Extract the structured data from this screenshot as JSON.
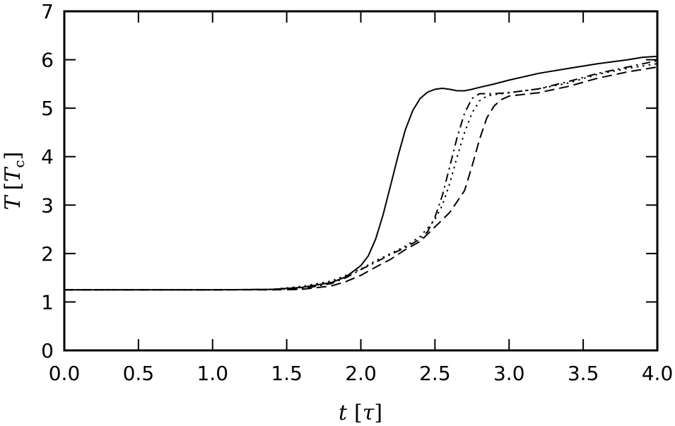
{
  "chart_data": {
    "type": "line",
    "xlabel": "t [τ]",
    "ylabel": "T [T_c]",
    "ylabel_parts": {
      "var": "T",
      "unit_var": "T",
      "unit_sub": "c"
    },
    "xlabel_parts": {
      "var": "t",
      "unit_var": "τ"
    },
    "xlim": [
      0.0,
      4.0
    ],
    "ylim": [
      0,
      7
    ],
    "x_ticks": [
      "0.0",
      "0.5",
      "1.0",
      "1.5",
      "2.0",
      "2.5",
      "3.0",
      "3.5",
      "4.0"
    ],
    "y_ticks": [
      "0",
      "1",
      "2",
      "3",
      "4",
      "5",
      "6",
      "7"
    ],
    "grid": false,
    "series": [
      {
        "style": "solid",
        "color": "#000000",
        "points": [
          [
            0.0,
            1.25
          ],
          [
            1.0,
            1.25
          ],
          [
            1.4,
            1.26
          ],
          [
            1.6,
            1.3
          ],
          [
            1.8,
            1.4
          ],
          [
            1.9,
            1.52
          ],
          [
            2.0,
            1.75
          ],
          [
            2.05,
            1.95
          ],
          [
            2.1,
            2.3
          ],
          [
            2.15,
            2.8
          ],
          [
            2.2,
            3.4
          ],
          [
            2.25,
            4.0
          ],
          [
            2.3,
            4.55
          ],
          [
            2.35,
            4.95
          ],
          [
            2.4,
            5.2
          ],
          [
            2.45,
            5.33
          ],
          [
            2.5,
            5.39
          ],
          [
            2.55,
            5.41
          ],
          [
            2.6,
            5.39
          ],
          [
            2.65,
            5.36
          ],
          [
            2.7,
            5.36
          ],
          [
            2.75,
            5.39
          ],
          [
            2.8,
            5.43
          ],
          [
            2.9,
            5.5
          ],
          [
            3.0,
            5.58
          ],
          [
            3.2,
            5.72
          ],
          [
            3.4,
            5.82
          ],
          [
            3.6,
            5.92
          ],
          [
            3.8,
            6.0
          ],
          [
            3.9,
            6.05
          ],
          [
            4.0,
            6.07
          ]
        ]
      },
      {
        "style": "dashdot",
        "color": "#000000",
        "points": [
          [
            0.0,
            1.25
          ],
          [
            1.0,
            1.25
          ],
          [
            1.4,
            1.26
          ],
          [
            1.6,
            1.27
          ],
          [
            1.8,
            1.38
          ],
          [
            1.9,
            1.5
          ],
          [
            2.0,
            1.67
          ],
          [
            2.1,
            1.82
          ],
          [
            2.2,
            1.98
          ],
          [
            2.3,
            2.12
          ],
          [
            2.4,
            2.3
          ],
          [
            2.45,
            2.45
          ],
          [
            2.5,
            2.75
          ],
          [
            2.55,
            3.2
          ],
          [
            2.6,
            3.8
          ],
          [
            2.65,
            4.4
          ],
          [
            2.7,
            4.9
          ],
          [
            2.75,
            5.2
          ],
          [
            2.8,
            5.3
          ],
          [
            2.9,
            5.3
          ],
          [
            3.0,
            5.32
          ],
          [
            3.2,
            5.4
          ],
          [
            3.4,
            5.55
          ],
          [
            3.6,
            5.72
          ],
          [
            3.8,
            5.85
          ],
          [
            4.0,
            5.98
          ]
        ]
      },
      {
        "style": "dotted",
        "color": "#000000",
        "points": [
          [
            0.0,
            1.25
          ],
          [
            1.0,
            1.25
          ],
          [
            1.4,
            1.26
          ],
          [
            1.6,
            1.32
          ],
          [
            1.8,
            1.43
          ],
          [
            1.9,
            1.55
          ],
          [
            2.0,
            1.68
          ],
          [
            2.1,
            1.85
          ],
          [
            2.2,
            2.0
          ],
          [
            2.3,
            2.15
          ],
          [
            2.4,
            2.35
          ],
          [
            2.5,
            2.7
          ],
          [
            2.55,
            3.0
          ],
          [
            2.6,
            3.45
          ],
          [
            2.65,
            4.0
          ],
          [
            2.7,
            4.5
          ],
          [
            2.75,
            4.9
          ],
          [
            2.8,
            5.15
          ],
          [
            2.85,
            5.25
          ],
          [
            2.9,
            5.28
          ],
          [
            3.0,
            5.32
          ],
          [
            3.2,
            5.4
          ],
          [
            3.4,
            5.52
          ],
          [
            3.6,
            5.7
          ],
          [
            3.8,
            5.82
          ],
          [
            4.0,
            5.92
          ]
        ]
      },
      {
        "style": "dashed",
        "color": "#000000",
        "points": [
          [
            0.0,
            1.25
          ],
          [
            1.0,
            1.25
          ],
          [
            1.4,
            1.25
          ],
          [
            1.6,
            1.26
          ],
          [
            1.8,
            1.33
          ],
          [
            1.9,
            1.42
          ],
          [
            2.0,
            1.55
          ],
          [
            2.1,
            1.72
          ],
          [
            2.2,
            1.88
          ],
          [
            2.3,
            2.08
          ],
          [
            2.4,
            2.25
          ],
          [
            2.5,
            2.55
          ],
          [
            2.6,
            2.85
          ],
          [
            2.7,
            3.3
          ],
          [
            2.75,
            3.8
          ],
          [
            2.8,
            4.35
          ],
          [
            2.85,
            4.8
          ],
          [
            2.9,
            5.05
          ],
          [
            2.95,
            5.18
          ],
          [
            3.0,
            5.25
          ],
          [
            3.2,
            5.32
          ],
          [
            3.4,
            5.45
          ],
          [
            3.6,
            5.62
          ],
          [
            3.8,
            5.75
          ],
          [
            4.0,
            5.85
          ]
        ]
      }
    ]
  }
}
